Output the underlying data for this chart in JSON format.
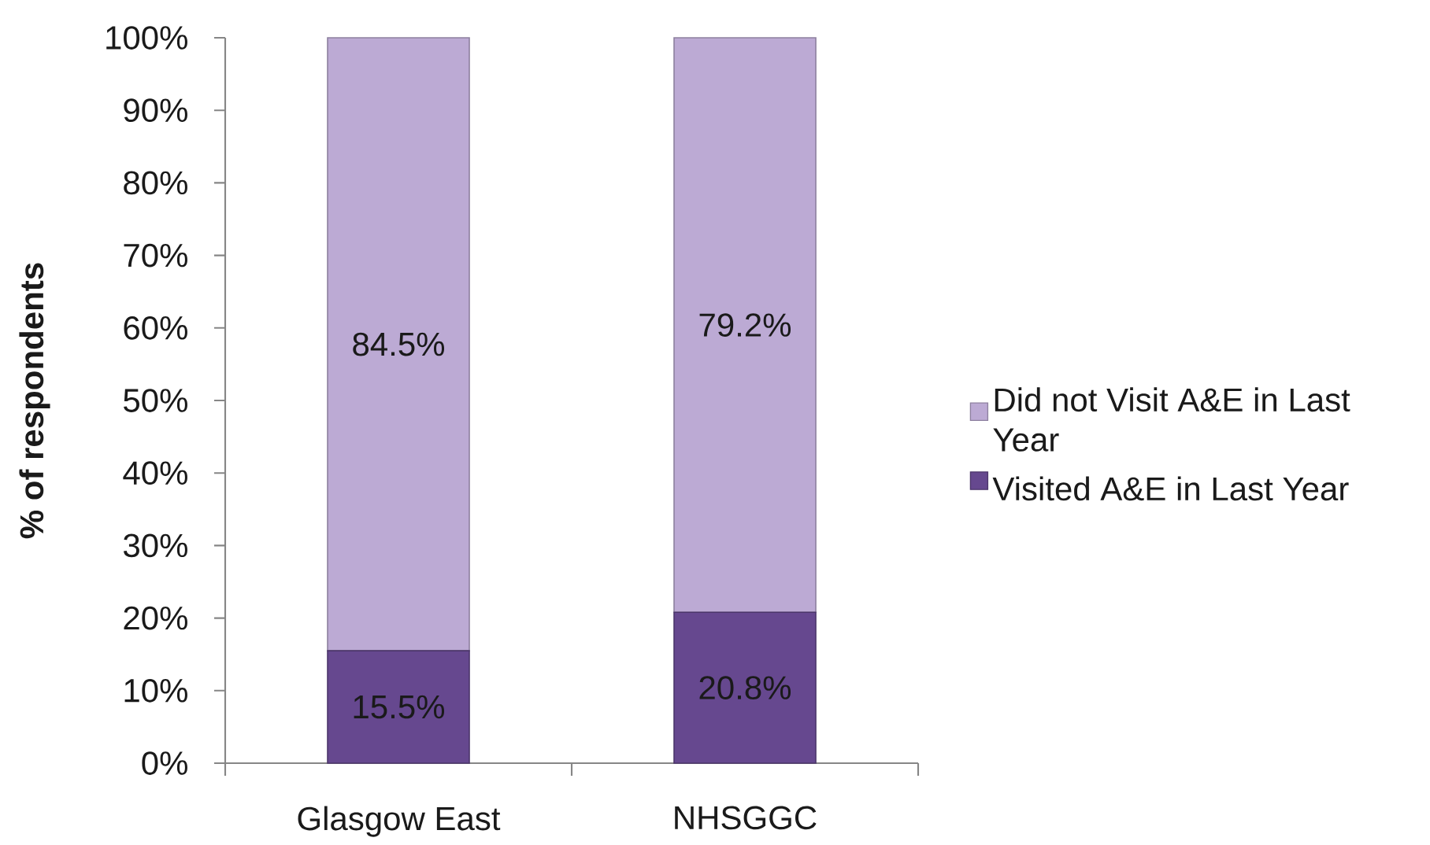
{
  "chart_data": {
    "type": "bar",
    "stacked": true,
    "ylabel": "% of respondents",
    "categories": [
      "Glasgow East",
      "NHSGGC"
    ],
    "series": [
      {
        "name": "Visited A&E in Last Year",
        "color": "#66488f",
        "values": [
          15.5,
          20.8
        ],
        "value_labels": [
          "15.5%",
          "20.8%"
        ]
      },
      {
        "name": "Did not Visit A&E in Last Year",
        "color": "#bcaad4",
        "values": [
          84.5,
          79.2
        ],
        "value_labels": [
          "84.5%",
          "79.2%"
        ]
      }
    ],
    "ylim": [
      0,
      100
    ],
    "yticks": [
      {
        "value": 0,
        "label": "0%"
      },
      {
        "value": 10,
        "label": "10%"
      },
      {
        "value": 20,
        "label": "20%"
      },
      {
        "value": 30,
        "label": "30%"
      },
      {
        "value": 40,
        "label": "40%"
      },
      {
        "value": 50,
        "label": "50%"
      },
      {
        "value": 60,
        "label": "60%"
      },
      {
        "value": 70,
        "label": "70%"
      },
      {
        "value": 80,
        "label": "80%"
      },
      {
        "value": 90,
        "label": "90%"
      },
      {
        "value": 100,
        "label": "100%"
      }
    ],
    "legend": "right"
  }
}
